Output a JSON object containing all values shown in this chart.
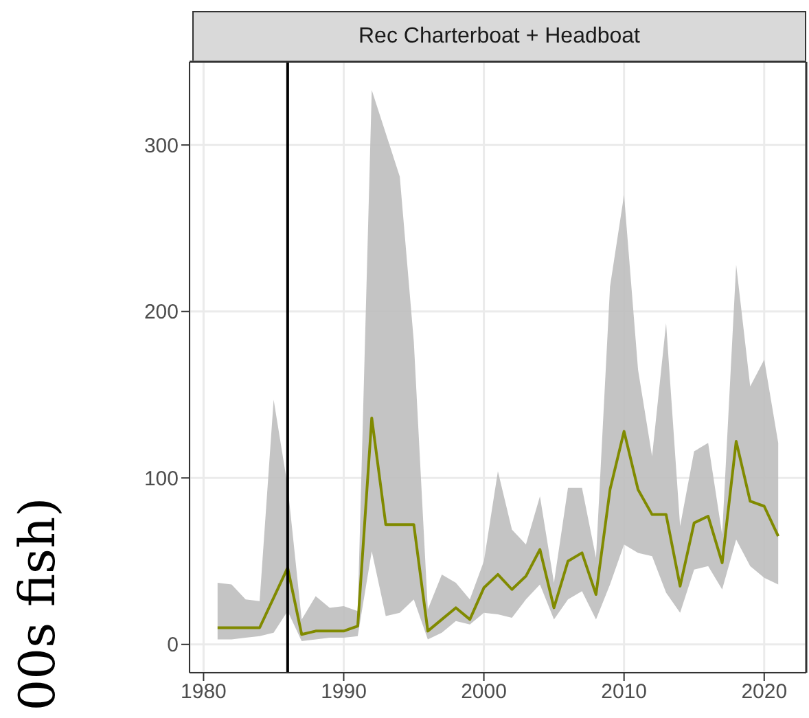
{
  "chart_data": {
    "type": "line",
    "title": "Rec Charterboat + Headboat",
    "ylabel": "00s fish)",
    "x": [
      1981,
      1982,
      1983,
      1984,
      1985,
      1986,
      1987,
      1988,
      1989,
      1990,
      1991,
      1992,
      1993,
      1994,
      1995,
      1996,
      1997,
      1998,
      1999,
      2000,
      2001,
      2002,
      2003,
      2004,
      2005,
      2006,
      2007,
      2008,
      2009,
      2010,
      2011,
      2012,
      2013,
      2014,
      2015,
      2016,
      2017,
      2018,
      2019,
      2020,
      2021
    ],
    "series": [
      {
        "color": "#808a00",
        "values": [
          10,
          10,
          10,
          10,
          28,
          46,
          6,
          8,
          8,
          8,
          11,
          136,
          72,
          72,
          72,
          8,
          15,
          22,
          15,
          34,
          42,
          33,
          41,
          57,
          22,
          50,
          55,
          30,
          93,
          128,
          93,
          78,
          78,
          35,
          73,
          77,
          49,
          122,
          86,
          83,
          65
        ],
        "lower": [
          3,
          3,
          4,
          5,
          7,
          20,
          2,
          3,
          4,
          4,
          5,
          56,
          17,
          19,
          27,
          3,
          7,
          14,
          12,
          19,
          18,
          16,
          27,
          36,
          15,
          27,
          32,
          15,
          36,
          60,
          55,
          53,
          31,
          19,
          45,
          47,
          33,
          63,
          47,
          40,
          36
        ],
        "upper": [
          37,
          36,
          27,
          26,
          147,
          95,
          15,
          29,
          22,
          23,
          20,
          333,
          307,
          281,
          182,
          21,
          42,
          37,
          27,
          50,
          104,
          69,
          60,
          89,
          37,
          94,
          94,
          52,
          215,
          270,
          165,
          113,
          193,
          71,
          116,
          121,
          66,
          228,
          155,
          171,
          121
        ]
      }
    ],
    "xlim": [
      1979,
      2023
    ],
    "xticks": [
      1980,
      1990,
      2000,
      2010,
      2020
    ],
    "ylim": [
      -17,
      350
    ],
    "yticks": [
      0,
      100,
      200,
      300
    ],
    "ref_lines": [
      {
        "axis": "x",
        "value": 1986,
        "color": "#000000"
      }
    ],
    "grid": true
  }
}
